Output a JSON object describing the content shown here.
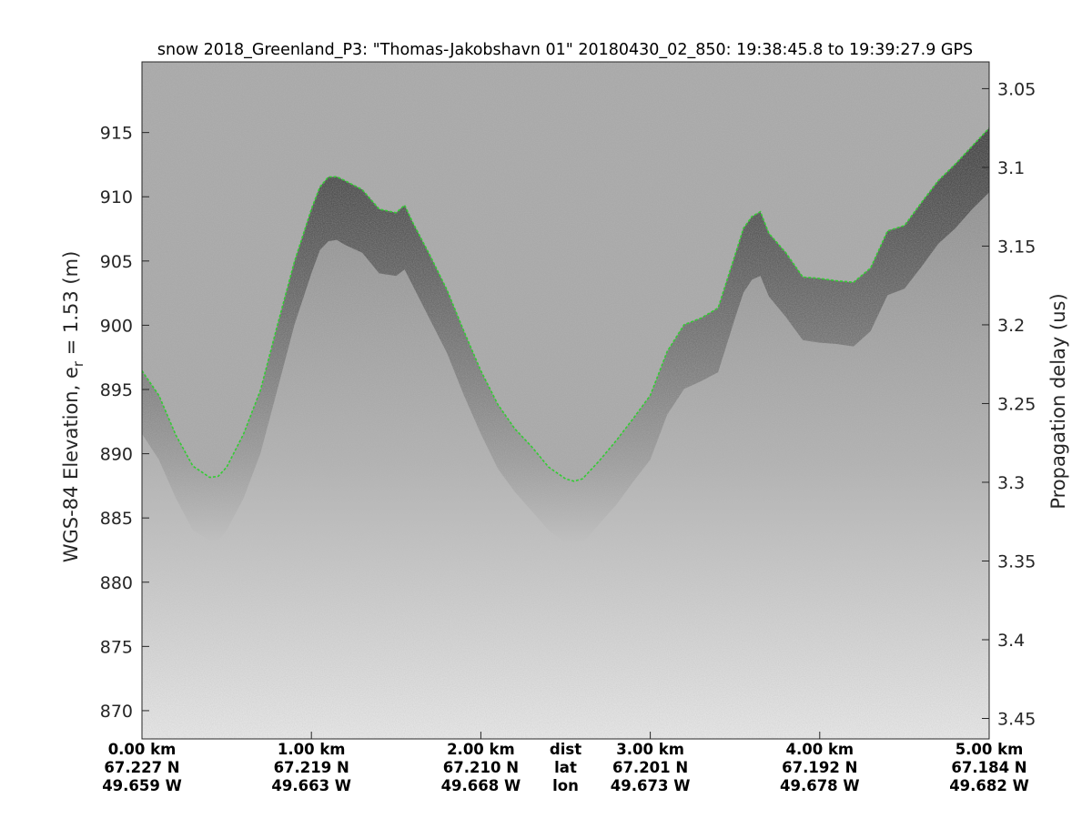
{
  "chart_data": {
    "type": "line",
    "title": "snow 2018_Greenland_P3: \"Thomas-Jakobshavn 01\"  20180430_02_850: 19:38:45.8 to 19:39:27.9 GPS",
    "ylabel_main": "WGS-84 Elevation, e",
    "ylabel_sub": "r",
    "ylabel_tail": " = 1.53 (m)",
    "y2label": "Propagation delay (us)",
    "ylim": [
      867.8,
      920.5
    ],
    "y_ticks": [
      870,
      875,
      880,
      885,
      890,
      895,
      900,
      905,
      910,
      915
    ],
    "y_tick_labels": [
      "870",
      "875",
      "880",
      "885",
      "890",
      "895",
      "900",
      "905",
      "910",
      "915"
    ],
    "y2lim": [
      3.463,
      3.033
    ],
    "y2_ticks": [
      3.05,
      3.1,
      3.15,
      3.2,
      3.25,
      3.3,
      3.35,
      3.4,
      3.45
    ],
    "y2_tick_labels": [
      "3.05",
      "3.1",
      "3.15",
      "3.2",
      "3.25",
      "3.3",
      "3.35",
      "3.4",
      "3.45"
    ],
    "xlim": [
      0,
      5
    ],
    "x_ticks": [
      0,
      1,
      2,
      3,
      4,
      5
    ],
    "x_rows": {
      "dist": [
        "0.00 km",
        "1.00 km",
        "2.00 km",
        "3.00 km",
        "4.00 km",
        "5.00 km"
      ],
      "lat": [
        "67.227 N",
        "67.219 N",
        "67.210 N",
        "67.201 N",
        "67.192 N",
        "67.184 N"
      ],
      "lon": [
        "49.659 W",
        "49.663 W",
        "49.668 W",
        "49.673 W",
        "49.678 W",
        "49.682 W"
      ]
    },
    "x_row_labels": [
      "dist",
      "lat",
      "lon"
    ],
    "grid": false,
    "colors": {
      "surface_line": "#33cc33",
      "background": "#a8a8a8"
    },
    "series": [
      {
        "x": [
          0.0,
          0.1,
          0.2,
          0.3,
          0.4,
          0.45,
          0.5,
          0.6,
          0.7,
          0.8,
          0.9,
          1.0,
          1.05,
          1.1,
          1.15,
          1.2,
          1.3,
          1.4,
          1.5,
          1.55,
          1.6,
          1.7,
          1.8,
          1.9,
          2.0,
          2.1,
          2.2,
          2.3,
          2.4,
          2.5,
          2.55,
          2.6,
          2.7,
          2.8,
          2.9,
          3.0,
          3.1,
          3.2,
          3.3,
          3.4,
          3.5,
          3.55,
          3.6,
          3.65,
          3.7,
          3.8,
          3.9,
          4.0,
          4.1,
          4.2,
          4.3,
          4.4,
          4.5,
          4.6,
          4.7,
          4.8,
          4.9,
          5.0
        ],
        "y": [
          896.5,
          894.5,
          891.5,
          889.0,
          888.2,
          888.2,
          889.0,
          891.5,
          895.0,
          900.0,
          905.0,
          909.0,
          910.8,
          911.5,
          911.6,
          911.2,
          910.6,
          909.0,
          908.8,
          909.3,
          908.0,
          905.4,
          902.8,
          899.5,
          896.5,
          893.8,
          892.0,
          890.5,
          889.0,
          888.0,
          887.9,
          888.0,
          889.5,
          891.0,
          892.8,
          894.5,
          898.0,
          900.0,
          900.6,
          901.3,
          905.5,
          907.5,
          908.5,
          908.8,
          907.2,
          905.6,
          903.8,
          903.6,
          903.5,
          903.3,
          904.5,
          907.3,
          907.8,
          909.5,
          911.3,
          912.5,
          914.0,
          915.3
        ]
      }
    ]
  }
}
